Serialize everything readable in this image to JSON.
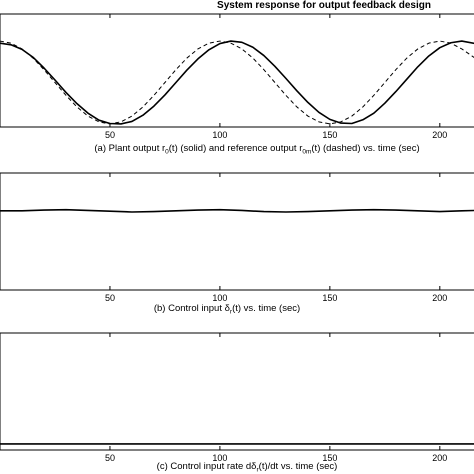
{
  "figure_title": "System response for output feedback design",
  "chart_data": [
    {
      "type": "line",
      "caption": {
        "pre": "(a) Plant output r",
        "sub1": "0",
        "mid1": "(t) (solid) and reference output r",
        "sub2": "0m",
        "post": "(t) (dashed) vs. time (sec)"
      },
      "xlim": [
        0,
        216
      ],
      "ylim": [
        -1.05,
        1.05
      ],
      "xticks": [
        50,
        100,
        150,
        200
      ],
      "series": [
        {
          "style": "solid",
          "x": [
            0,
            5,
            10,
            15,
            20,
            25,
            30,
            35,
            40,
            45,
            50,
            55,
            60,
            65,
            70,
            75,
            80,
            85,
            90,
            95,
            100,
            105,
            110,
            115,
            120,
            125,
            130,
            135,
            140,
            145,
            150,
            155,
            160,
            165,
            170,
            175,
            180,
            185,
            190,
            195,
            200,
            205,
            210,
            216
          ],
          "y": [
            0.95,
            0.91,
            0.8,
            0.61,
            0.35,
            0.06,
            -0.24,
            -0.51,
            -0.74,
            -0.91,
            -0.99,
            -1.0,
            -0.94,
            -0.79,
            -0.57,
            -0.3,
            0.0,
            0.3,
            0.57,
            0.79,
            0.94,
            1.0,
            0.97,
            0.85,
            0.65,
            0.39,
            0.1,
            -0.2,
            -0.48,
            -0.72,
            -0.89,
            -0.98,
            -0.99,
            -0.9,
            -0.74,
            -0.5,
            -0.22,
            0.08,
            0.38,
            0.64,
            0.84,
            0.96,
            1.0,
            0.94
          ]
        },
        {
          "style": "dashed",
          "x": [
            0,
            5,
            10,
            15,
            20,
            25,
            30,
            35,
            40,
            45,
            50,
            55,
            60,
            65,
            70,
            75,
            80,
            85,
            90,
            95,
            100,
            105,
            110,
            115,
            120,
            125,
            130,
            135,
            140,
            145,
            150,
            155,
            160,
            165,
            170,
            175,
            180,
            185,
            190,
            195,
            200,
            205,
            210,
            216
          ],
          "y": [
            1.0,
            0.95,
            0.81,
            0.59,
            0.31,
            0.0,
            -0.31,
            -0.59,
            -0.81,
            -0.95,
            -1.0,
            -0.95,
            -0.81,
            -0.59,
            -0.31,
            0.0,
            0.31,
            0.59,
            0.81,
            0.95,
            1.0,
            0.95,
            0.81,
            0.59,
            0.31,
            0.0,
            -0.31,
            -0.59,
            -0.81,
            -0.95,
            -1.0,
            -0.95,
            -0.81,
            -0.59,
            -0.31,
            0.0,
            0.31,
            0.59,
            0.81,
            0.95,
            1.0,
            0.95,
            0.81,
            0.59
          ]
        }
      ]
    },
    {
      "type": "line",
      "caption": {
        "pre": "(b) Control input δ",
        "sub1": "r",
        "post": "(t) vs. time (sec)"
      },
      "xlim": [
        0,
        216
      ],
      "ylim": [
        -1.0,
        0.3
      ],
      "xticks": [
        50,
        100,
        150,
        200
      ],
      "series": [
        {
          "style": "solid",
          "x": [
            0,
            10,
            20,
            30,
            40,
            50,
            60,
            70,
            80,
            90,
            100,
            110,
            120,
            130,
            140,
            150,
            160,
            170,
            180,
            190,
            200,
            210,
            216
          ],
          "y": [
            0.0,
            0.0,
            0.01,
            0.015,
            0.005,
            -0.005,
            -0.015,
            -0.01,
            0.0,
            0.01,
            0.015,
            0.005,
            -0.01,
            -0.015,
            -0.01,
            0.0,
            0.01,
            0.015,
            0.01,
            0.0,
            -0.01,
            0.0,
            0.005
          ]
        }
      ]
    },
    {
      "type": "line",
      "caption": {
        "pre": "(c) Control input rate dδ",
        "sub1": "r",
        "post": "(t)/dt vs. time (sec)"
      },
      "xlim": [
        0,
        216
      ],
      "ylim": [
        -1.0,
        0.3
      ],
      "xticks": [
        50,
        100,
        150,
        200
      ],
      "series": [
        {
          "style": "solid",
          "x": [
            0,
            20,
            40,
            60,
            80,
            100,
            120,
            140,
            160,
            180,
            200,
            216
          ],
          "y": [
            -0.96,
            -0.96,
            -0.96,
            -0.96,
            -0.96,
            -0.96,
            -0.96,
            -0.96,
            -0.96,
            -0.96,
            -0.96,
            -0.96
          ]
        }
      ]
    }
  ]
}
